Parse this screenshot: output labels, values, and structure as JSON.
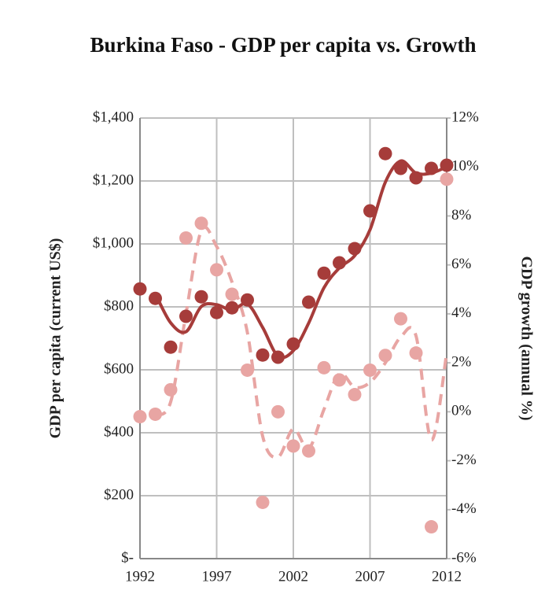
{
  "chart_data": {
    "type": "scatter",
    "title": "Burkina Faso - GDP per capita vs. Growth",
    "y_label": "GDP per capita (current US$)",
    "y2_label": "GDP growth (annual %)",
    "x": [
      1992,
      1993,
      1994,
      1995,
      1996,
      1997,
      1998,
      1999,
      2000,
      2001,
      2002,
      2003,
      2004,
      2005,
      2006,
      2007,
      2008,
      2009,
      2010,
      2011,
      2012
    ],
    "xlim": [
      1992,
      2012
    ],
    "xticks": [
      1992,
      1997,
      2002,
      2007,
      2012
    ],
    "ylim": [
      0,
      1400
    ],
    "yticks": [
      {
        "value": 0,
        "label": "$-"
      },
      {
        "value": 200,
        "label": "$200"
      },
      {
        "value": 400,
        "label": "$400"
      },
      {
        "value": 600,
        "label": "$600"
      },
      {
        "value": 800,
        "label": "$800"
      },
      {
        "value": 1000,
        "label": "$1,000"
      },
      {
        "value": 1200,
        "label": "$1,200"
      },
      {
        "value": 1400,
        "label": "$1,400"
      }
    ],
    "y2lim": [
      -6,
      12
    ],
    "y2ticks": [
      {
        "value": -6,
        "label": "-6%"
      },
      {
        "value": -4,
        "label": "-4%"
      },
      {
        "value": -2,
        "label": "-2%"
      },
      {
        "value": 0,
        "label": "0%"
      },
      {
        "value": 2,
        "label": "2%"
      },
      {
        "value": 4,
        "label": "4%"
      },
      {
        "value": 6,
        "label": "6%"
      },
      {
        "value": 8,
        "label": "8%"
      },
      {
        "value": 10,
        "label": "10%"
      },
      {
        "value": 12,
        "label": "12%"
      }
    ],
    "grid": true,
    "series": [
      {
        "color": "#a63c3a",
        "axis": "y",
        "trendline": {
          "type": "moving_average",
          "period": 2,
          "dash": false
        },
        "values": [
          857,
          827,
          672,
          770,
          832,
          782,
          797,
          822,
          647,
          640,
          682,
          815,
          907,
          940,
          985,
          1105,
          1287,
          1240,
          1210,
          1240,
          1250
        ]
      },
      {
        "color": "#e8a5a3",
        "axis": "y2",
        "trendline": {
          "type": "moving_average",
          "period": 2,
          "dash": true
        },
        "values": [
          -0.2,
          -0.1,
          0.9,
          7.1,
          7.7,
          5.8,
          4.8,
          1.7,
          -3.7,
          0.0,
          -1.4,
          -1.6,
          1.8,
          1.3,
          0.7,
          1.7,
          2.3,
          3.8,
          2.4,
          -4.7,
          9.5
        ]
      }
    ]
  }
}
